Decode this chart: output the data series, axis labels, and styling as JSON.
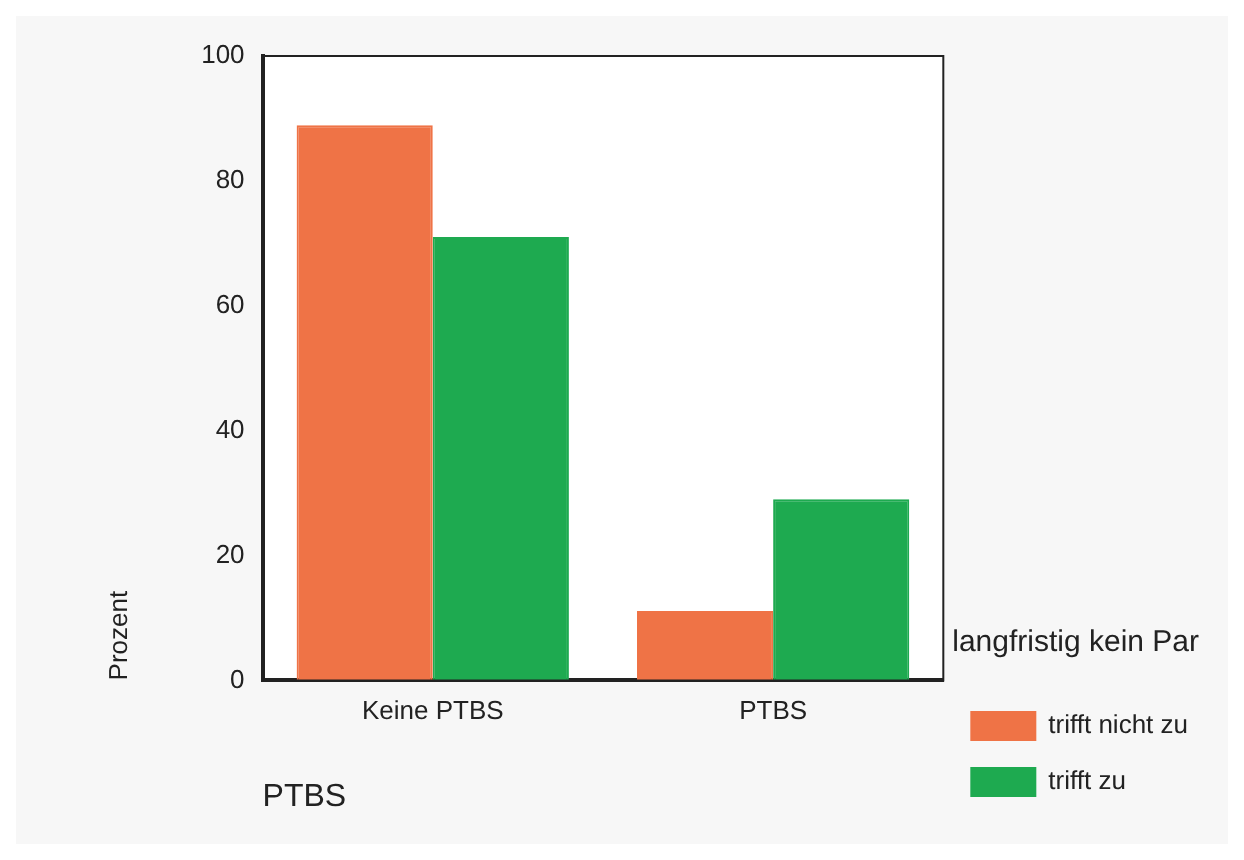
{
  "chart_data": {
    "type": "bar",
    "xlabel": "PTBS",
    "ylabel": "Prozent",
    "legend_title": "langfristig kein Par",
    "categories": [
      "Keine PTBS",
      "PTBS"
    ],
    "series": [
      {
        "name": "trifft nicht zu",
        "color": "#ef7346",
        "values": [
          88.9,
          11.1
        ]
      },
      {
        "name": "trifft zu",
        "color": "#1eaa50",
        "values": [
          71,
          29
        ]
      }
    ],
    "ylim": [
      0,
      100
    ],
    "yticks": [
      0,
      20,
      40,
      60,
      80,
      100
    ],
    "grid": false,
    "legend": "bottom right"
  }
}
